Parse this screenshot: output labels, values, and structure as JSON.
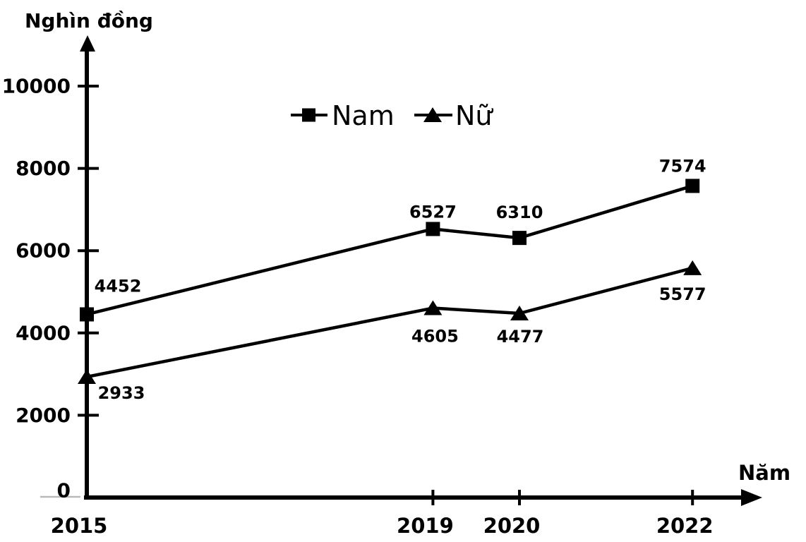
{
  "chart_data": {
    "type": "line",
    "title": "",
    "ylabel": "Nghìn đồng",
    "xlabel": "Năm",
    "x": [
      2015,
      2019,
      2020,
      2022
    ],
    "x_tick_labels": [
      "2015",
      "2019",
      "2020",
      "2022"
    ],
    "y_ticks": [
      0,
      2000,
      4000,
      6000,
      8000,
      10000
    ],
    "ylim": [
      0,
      11200
    ],
    "xlim": [
      2015,
      2022.8
    ],
    "grid": false,
    "legend_position": "top-center",
    "background_color": "#ffffff",
    "axis_color": "#000000",
    "zero_baseline_color": "#b9b9b9",
    "series": [
      {
        "name": "Nam",
        "marker": "square",
        "color": "#000000",
        "values": [
          4452,
          6527,
          6310,
          7574
        ],
        "data_labels": [
          "4452",
          "6527",
          "6310",
          "7574"
        ],
        "label_side": "above"
      },
      {
        "name": "Nữ",
        "marker": "triangle",
        "color": "#000000",
        "values": [
          2933,
          4605,
          4477,
          5577
        ],
        "data_labels": [
          "2933",
          "4605",
          "4477",
          "5577"
        ],
        "label_side": "below"
      }
    ]
  }
}
